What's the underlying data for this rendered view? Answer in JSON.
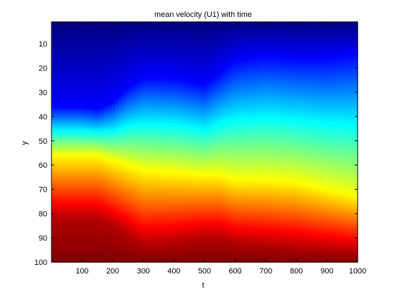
{
  "chart_data": {
    "type": "heatmap",
    "title": "mean velocity (U1) with time",
    "xlabel": "t",
    "ylabel": "y",
    "xlim": [
      0,
      1000
    ],
    "ylim": [
      1,
      100
    ],
    "y_reversed": true,
    "x_ticks": [
      "100",
      "200",
      "300",
      "400",
      "500",
      "600",
      "700",
      "800",
      "900",
      "1000"
    ],
    "y_ticks": [
      "10",
      "20",
      "30",
      "40",
      "50",
      "60",
      "70",
      "80",
      "90",
      "100"
    ],
    "colormap": "jet",
    "color_range": [
      0,
      1
    ],
    "grid": false,
    "legend": "none",
    "field": {
      "t": [
        0,
        100,
        150,
        200,
        250,
        300,
        400,
        500,
        550,
        600,
        700,
        800,
        900,
        1000
      ],
      "blue_end_y": [
        36,
        36,
        37,
        34,
        28,
        24,
        24,
        27,
        22,
        17,
        15,
        16,
        16,
        14
      ],
      "yellow_y": [
        56,
        56,
        56,
        58,
        60,
        62,
        63,
        64,
        64,
        66,
        66,
        67,
        70,
        73
      ],
      "darkred_y": [
        82,
        82,
        82,
        85,
        89,
        93,
        92,
        90,
        90,
        92,
        93,
        94,
        95,
        96
      ]
    }
  }
}
